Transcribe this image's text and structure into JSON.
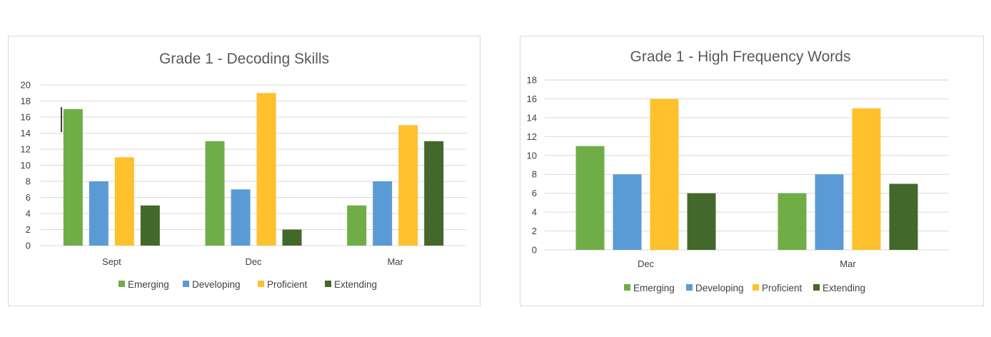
{
  "chart_data": [
    {
      "type": "bar",
      "title": "Grade 1 - Decoding Skills",
      "xlabel": "",
      "ylabel": "",
      "categories": [
        "Sept",
        "Dec",
        "Mar"
      ],
      "ylim": [
        0,
        20
      ],
      "yticks": [
        0,
        2,
        4,
        6,
        8,
        10,
        12,
        14,
        16,
        18,
        20
      ],
      "grid": true,
      "legend": "bottom",
      "series": [
        {
          "name": "Emerging",
          "color": "#70ad47",
          "values": [
            17,
            13,
            5
          ]
        },
        {
          "name": "Developing",
          "color": "#5b9bd5",
          "values": [
            8,
            7,
            8
          ]
        },
        {
          "name": "Proficient",
          "color": "#ffc02e",
          "values": [
            11,
            19,
            15
          ]
        },
        {
          "name": "Extending",
          "color": "#43682b",
          "values": [
            5,
            2,
            13
          ]
        }
      ]
    },
    {
      "type": "bar",
      "title": "Grade 1 - High Frequency Words",
      "xlabel": "",
      "ylabel": "",
      "categories": [
        "Dec",
        "Mar"
      ],
      "ylim": [
        0,
        18
      ],
      "yticks": [
        0,
        2,
        4,
        6,
        8,
        10,
        12,
        14,
        16,
        18
      ],
      "grid": true,
      "legend": "bottom",
      "series": [
        {
          "name": "Emerging",
          "color": "#70ad47",
          "values": [
            11,
            6
          ]
        },
        {
          "name": "Developing",
          "color": "#5b9bd5",
          "values": [
            8,
            8
          ]
        },
        {
          "name": "Proficient",
          "color": "#ffc02e",
          "values": [
            16,
            15
          ]
        },
        {
          "name": "Extending",
          "color": "#43682b",
          "values": [
            6,
            7
          ]
        }
      ]
    }
  ]
}
